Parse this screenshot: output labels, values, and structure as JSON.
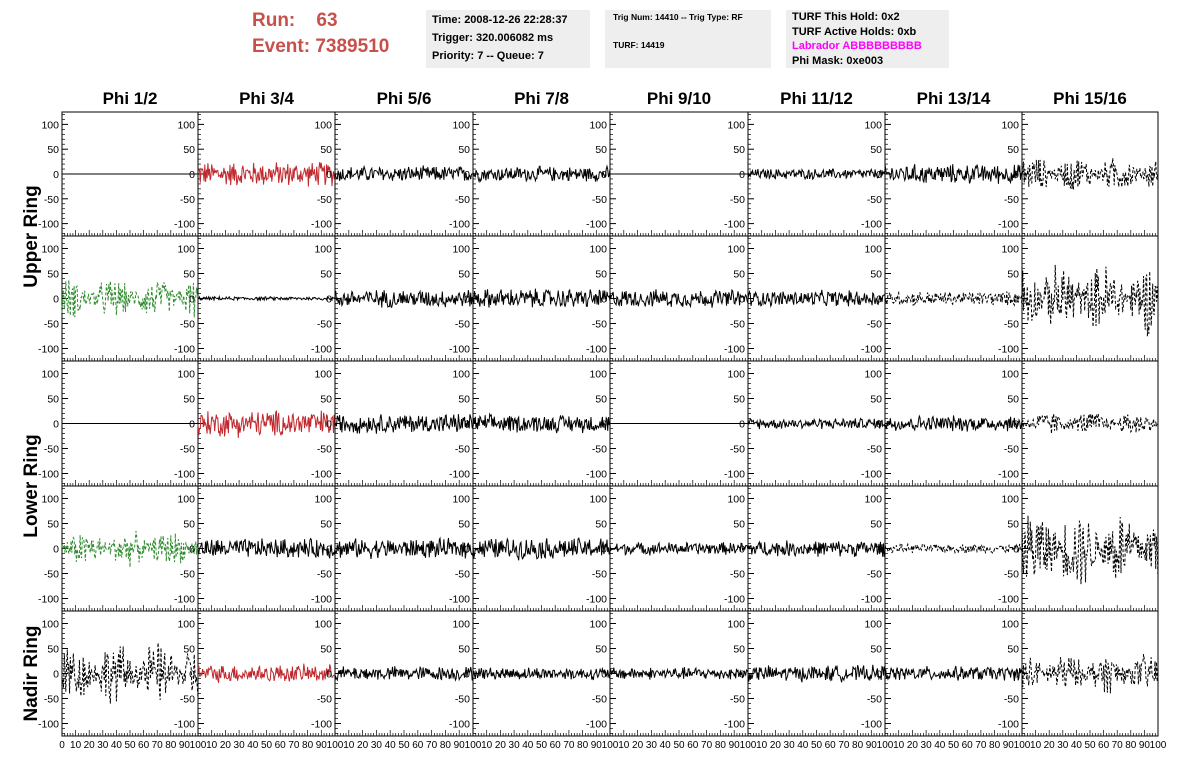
{
  "header": {
    "run_label": "Run:",
    "run_value": "63",
    "event_label": "Event:",
    "event_value": "7389510"
  },
  "info_panel_1": {
    "time": "Time: 2008-12-26 22:28:37",
    "trigger": "Trigger: 320.006082 ms",
    "priority": "Priority: 7 -- Queue: 7"
  },
  "info_panel_2": {
    "trig": "Trig Num: 14410 -- Trig Type: RF",
    "turf": "TURF: 14419"
  },
  "info_panel_3": {
    "this_hold": "TURF This Hold: 0x2",
    "active_holds": "TURF Active Holds: 0xb",
    "labrador": "Labrador ABBBBBBBBB",
    "phi_mask": "Phi Mask: 0xe003"
  },
  "grid": {
    "columns": [
      "Phi 1/2",
      "Phi 3/4",
      "Phi 5/6",
      "Phi 7/8",
      "Phi 9/10",
      "Phi 11/12",
      "Phi 13/14",
      "Phi 15/16"
    ],
    "ring_labels": [
      "Upper Ring",
      "Lower Ring",
      "Nadir Ring"
    ],
    "y_ticks": [
      100,
      50,
      0,
      -50,
      -100
    ],
    "x_ticks": [
      0,
      10,
      20,
      30,
      40,
      50,
      60,
      70,
      80,
      90,
      100
    ],
    "ylim": [
      -125,
      125
    ],
    "xlim": [
      0,
      100
    ],
    "colors": {
      "black": "#000000",
      "red": "#c0282d",
      "green": "#2e8b2e"
    },
    "rows": [
      [
        {
          "color": "black",
          "dashed": false,
          "amp": 0,
          "env": "flat"
        },
        {
          "color": "red",
          "dashed": false,
          "amp": 28,
          "env": "uniform"
        },
        {
          "color": "black",
          "dashed": false,
          "amp": 18,
          "env": "uniform"
        },
        {
          "color": "black",
          "dashed": false,
          "amp": 17,
          "env": "uniform"
        },
        {
          "color": "black",
          "dashed": false,
          "amp": 0,
          "env": "flat"
        },
        {
          "color": "black",
          "dashed": false,
          "amp": 12,
          "env": "uniform"
        },
        {
          "color": "black",
          "dashed": false,
          "amp": 22,
          "env": "uniform"
        },
        {
          "color": "black",
          "dashed": true,
          "amp": 40,
          "env": "bursty"
        }
      ],
      [
        {
          "color": "green",
          "dashed": true,
          "amp": 45,
          "env": "bursty"
        },
        {
          "color": "black",
          "dashed": false,
          "amp": 4,
          "env": "uniform"
        },
        {
          "color": "black",
          "dashed": false,
          "amp": 20,
          "env": "uniform"
        },
        {
          "color": "black",
          "dashed": false,
          "amp": 22,
          "env": "uniform"
        },
        {
          "color": "black",
          "dashed": false,
          "amp": 20,
          "env": "uniform"
        },
        {
          "color": "black",
          "dashed": false,
          "amp": 18,
          "env": "uniform"
        },
        {
          "color": "black",
          "dashed": true,
          "amp": 16,
          "env": "uniform"
        },
        {
          "color": "black",
          "dashed": true,
          "amp": 80,
          "env": "bursty"
        }
      ],
      [
        {
          "color": "black",
          "dashed": false,
          "amp": 0,
          "env": "flat"
        },
        {
          "color": "red",
          "dashed": false,
          "amp": 30,
          "env": "uniform"
        },
        {
          "color": "black",
          "dashed": false,
          "amp": 22,
          "env": "uniform"
        },
        {
          "color": "black",
          "dashed": false,
          "amp": 20,
          "env": "uniform"
        },
        {
          "color": "black",
          "dashed": false,
          "amp": 0,
          "env": "flat"
        },
        {
          "color": "black",
          "dashed": false,
          "amp": 12,
          "env": "uniform"
        },
        {
          "color": "black",
          "dashed": false,
          "amp": 18,
          "env": "uniform"
        },
        {
          "color": "black",
          "dashed": true,
          "amp": 28,
          "env": "bursty"
        }
      ],
      [
        {
          "color": "green",
          "dashed": true,
          "amp": 40,
          "env": "bursty"
        },
        {
          "color": "black",
          "dashed": false,
          "amp": 22,
          "env": "uniform"
        },
        {
          "color": "black",
          "dashed": false,
          "amp": 22,
          "env": "uniform"
        },
        {
          "color": "black",
          "dashed": false,
          "amp": 24,
          "env": "uniform"
        },
        {
          "color": "black",
          "dashed": false,
          "amp": 14,
          "env": "uniform"
        },
        {
          "color": "black",
          "dashed": false,
          "amp": 18,
          "env": "uniform"
        },
        {
          "color": "black",
          "dashed": true,
          "amp": 10,
          "env": "uniform"
        },
        {
          "color": "black",
          "dashed": true,
          "amp": 90,
          "env": "bursty"
        }
      ],
      [
        {
          "color": "black",
          "dashed": true,
          "amp": 70,
          "env": "bursty"
        },
        {
          "color": "red",
          "dashed": false,
          "amp": 20,
          "env": "uniform"
        },
        {
          "color": "black",
          "dashed": false,
          "amp": 16,
          "env": "uniform"
        },
        {
          "color": "black",
          "dashed": false,
          "amp": 14,
          "env": "uniform"
        },
        {
          "color": "black",
          "dashed": false,
          "amp": 14,
          "env": "uniform"
        },
        {
          "color": "black",
          "dashed": false,
          "amp": 18,
          "env": "uniform"
        },
        {
          "color": "black",
          "dashed": false,
          "amp": 16,
          "env": "uniform"
        },
        {
          "color": "black",
          "dashed": true,
          "amp": 45,
          "env": "bursty"
        }
      ]
    ]
  }
}
